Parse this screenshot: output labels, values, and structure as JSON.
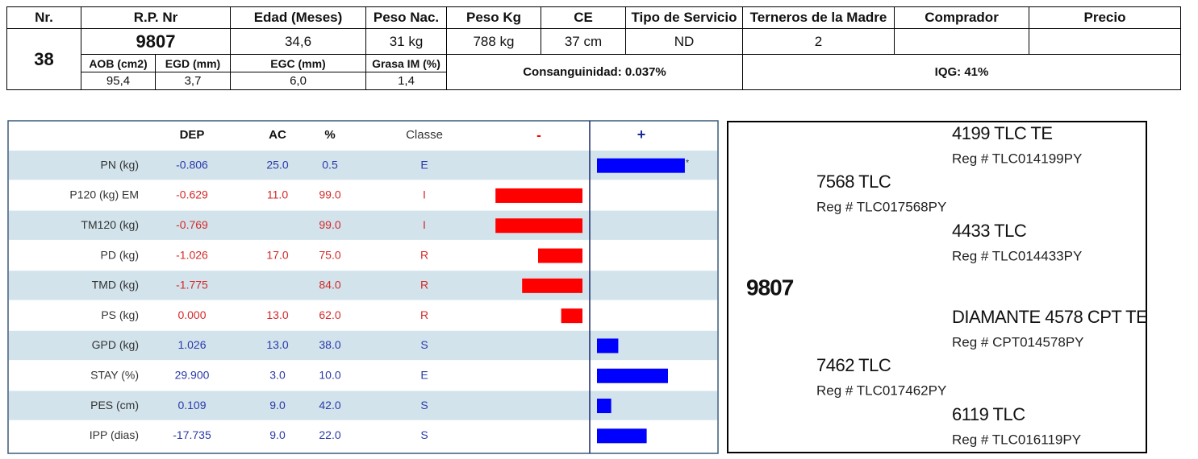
{
  "header_table": {
    "headers": [
      "Nr.",
      "R.P. Nr",
      "Edad (Meses)",
      "Peso Nac.",
      "Peso Kg",
      "CE",
      "Tipo de Servicio",
      "Terneros de la Madre",
      "Comprador",
      "Precio"
    ],
    "nr": "38",
    "rp": "9807",
    "edad": "34,6",
    "peso_nac": "31 kg",
    "peso_kg": "788 kg",
    "ce": "37 cm",
    "tipo": "ND",
    "terneros": "2",
    "sub_headers": [
      "AOB (cm2)",
      "EGD (mm)",
      "EGC (mm)",
      "Grasa IM (%)"
    ],
    "sub_values": [
      "95,4",
      "3,7",
      "6,0",
      "1,4"
    ],
    "consanguinidad": "Consanguinidad: 0.037%",
    "iqg": "IQG: 41%"
  },
  "dep_chart": {
    "type": "bar",
    "columns": [
      "DEP",
      "AC",
      "%",
      "Classe"
    ],
    "minus": "-",
    "plus": "+",
    "categories": [
      "PN (kg)",
      "P120 (kg) EM",
      "TM120 (kg)",
      "PD (kg)",
      "TMD (kg)",
      "PS (kg)",
      "GPD (kg)",
      "STAY (%)",
      "PES (cm)",
      "IPP (dias)"
    ],
    "dep": [
      "-0.806",
      "-0.629",
      "-0.769",
      "-1.026",
      "-1.775",
      "0.000",
      "1.026",
      "29.900",
      "0.109",
      "-17.735"
    ],
    "ac": [
      "25.0",
      "11.0",
      null,
      "17.0",
      null,
      "13.0",
      "13.0",
      "3.0",
      "9.0",
      "9.0"
    ],
    "values": [
      0.5,
      99,
      99,
      75,
      84,
      62,
      38,
      10,
      42,
      22
    ],
    "value_labels": [
      "0.5",
      "99.0",
      "99.0",
      "75.0",
      "84.0",
      "62.0",
      "38.0",
      "10.0",
      "42.0",
      "22.0"
    ],
    "classes": [
      "E",
      "I",
      "I",
      "R",
      "R",
      "R",
      "S",
      "E",
      "S",
      "S"
    ],
    "marker": "*",
    "xlim": [
      100,
      0
    ],
    "colors": {
      "plus": "#0000ff",
      "minus": "#ff0000",
      "plus_text": "#2a3aa8",
      "minus_text": "#d42a2a"
    }
  },
  "pedigree": {
    "animal": "9807",
    "nodes": [
      {
        "name": "4199 TLC TE",
        "reg": "Reg # TLC014199PY"
      },
      {
        "name": "7568 TLC",
        "reg": "Reg # TLC017568PY"
      },
      {
        "name": "4433 TLC",
        "reg": "Reg # TLC014433PY"
      },
      {
        "name": "DIAMANTE 4578 CPT TE",
        "reg": "Reg # CPT014578PY"
      },
      {
        "name": "7462 TLC",
        "reg": "Reg # TLC017462PY"
      },
      {
        "name": "6119 TLC",
        "reg": "Reg # TLC016119PY"
      }
    ]
  }
}
